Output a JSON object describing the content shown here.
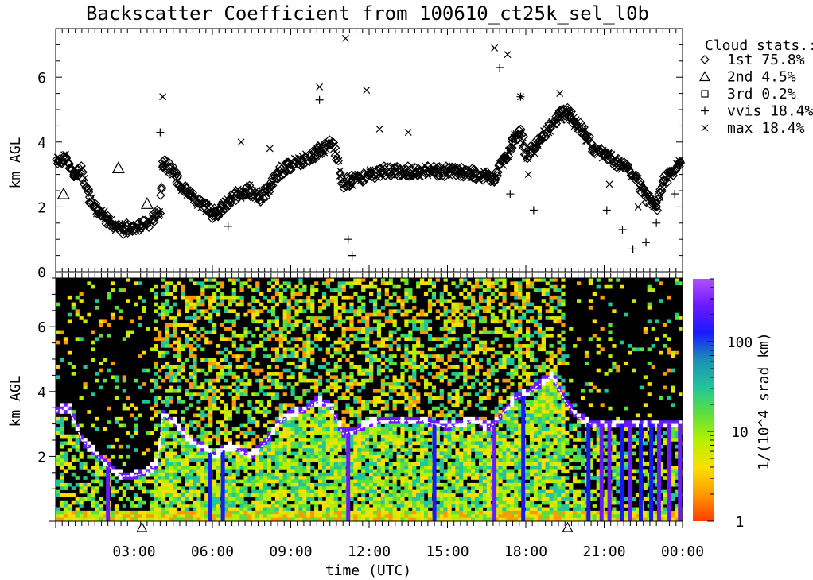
{
  "title": "Backscatter Coefficient from 100610_ct25k_sel_l0b",
  "chart_data": [
    {
      "type": "scatter",
      "panel": "cloud-base",
      "ylabel": "km AGL",
      "ylim": [
        0,
        7.5
      ],
      "y_ticks": [
        "0",
        "2",
        "4",
        "6"
      ],
      "xlim_hours": [
        0,
        24
      ],
      "legend_title": "Cloud stats.:",
      "legend_position": "top-right",
      "legend": [
        {
          "symbol": "diamond",
          "label": "1st",
          "value": "75.8%"
        },
        {
          "symbol": "triangle",
          "label": "2nd",
          "value": "4.5%"
        },
        {
          "symbol": "square",
          "label": "3rd",
          "value": "0.2%"
        },
        {
          "symbol": "plus",
          "label": "vvis",
          "value": "18.4%"
        },
        {
          "symbol": "cross",
          "label": "max",
          "value": "18.4%"
        }
      ],
      "series": [
        {
          "name": "1st",
          "x": [
            0.1,
            0.4,
            0.7,
            1.0,
            1.3,
            1.6,
            2.0,
            2.3,
            2.6,
            2.9,
            3.2,
            3.5,
            3.8,
            4.0,
            4.1,
            4.5,
            4.8,
            5.2,
            5.6,
            6.0,
            6.3,
            6.6,
            7.0,
            7.4,
            7.8,
            8.2,
            8.6,
            9.0,
            9.4,
            9.8,
            10.2,
            10.6,
            11.0,
            11.3,
            11.6,
            12.0,
            12.5,
            13.0,
            13.5,
            14.0,
            14.5,
            15.0,
            15.5,
            16.0,
            16.5,
            16.8,
            17.2,
            17.5,
            17.8,
            18.0,
            18.3,
            18.6,
            19.0,
            19.3,
            19.6,
            19.9,
            20.2,
            20.6,
            21.0,
            21.4,
            21.8,
            22.2,
            22.6,
            23.0,
            23.3,
            23.6,
            23.9
          ],
          "y": [
            3.4,
            3.5,
            3.0,
            3.1,
            2.3,
            1.9,
            1.6,
            1.4,
            1.3,
            1.4,
            1.4,
            1.5,
            1.7,
            1.8,
            3.4,
            3.1,
            2.6,
            2.3,
            2.1,
            1.8,
            1.9,
            2.2,
            2.4,
            2.5,
            2.3,
            2.6,
            3.1,
            3.3,
            3.4,
            3.6,
            3.8,
            4.0,
            2.7,
            2.8,
            2.9,
            3.0,
            3.1,
            3.1,
            3.1,
            3.1,
            3.1,
            3.1,
            3.1,
            3.0,
            3.0,
            2.9,
            3.5,
            4.0,
            4.4,
            3.6,
            3.8,
            4.2,
            4.5,
            4.8,
            4.9,
            4.6,
            4.3,
            3.8,
            3.6,
            3.4,
            3.2,
            2.9,
            2.3,
            2.0,
            2.8,
            3.1,
            3.4
          ],
          "symbol": "diamond"
        },
        {
          "name": "2nd",
          "x": [
            0.3,
            2.4,
            3.5
          ],
          "y": [
            2.4,
            3.2,
            2.1
          ],
          "symbol": "triangle"
        },
        {
          "name": "vvis",
          "x": [
            4.0,
            6.6,
            10.1,
            11.2,
            11.35,
            17.0,
            17.4,
            17.8,
            18.3,
            19.0,
            21.1,
            21.7,
            22.1,
            22.6,
            23.0,
            23.7
          ],
          "y": [
            4.3,
            1.4,
            5.3,
            1.0,
            0.5,
            6.3,
            2.4,
            5.4,
            1.9,
            4.6,
            1.9,
            1.3,
            0.7,
            0.9,
            1.5,
            2.4
          ],
          "symbol": "plus"
        },
        {
          "name": "max",
          "x": [
            4.1,
            7.1,
            8.2,
            10.1,
            11.1,
            11.9,
            12.4,
            13.5,
            16.8,
            17.3,
            17.8,
            18.1,
            19.3,
            21.2,
            22.3
          ],
          "y": [
            5.4,
            4.0,
            3.8,
            5.7,
            7.2,
            5.6,
            4.4,
            4.3,
            6.9,
            6.7,
            5.4,
            3.0,
            5.5,
            2.7,
            2.0
          ],
          "symbol": "cross"
        }
      ],
      "markers_at_hours": [
        3.3,
        19.6
      ]
    },
    {
      "type": "heatmap",
      "panel": "backscatter",
      "ylabel": "km AGL",
      "ylim": [
        0,
        7.5
      ],
      "y_ticks": [
        "2",
        "4",
        "6"
      ],
      "xlabel": "time (UTC)",
      "x_tick_labels": [
        "03:00",
        "06:00",
        "09:00",
        "12:00",
        "15:00",
        "18:00",
        "21:00",
        "00:00"
      ],
      "colorbar_label": "1/(10^4 srad km)",
      "colorbar_ticks": [
        "1",
        "10",
        "100"
      ],
      "colorbar_scale": "log",
      "colorbar_range": [
        1,
        500
      ],
      "colormap": [
        "#ff3c00",
        "#ff9a00",
        "#f8e000",
        "#b6f000",
        "#5ce040",
        "#22c49a",
        "#1a8fb8",
        "#1a1aff",
        "#6a1aff",
        "#b050ff"
      ],
      "cloud_layer": {
        "x": [
          0.0,
          0.5,
          1.0,
          1.5,
          2.0,
          2.5,
          3.0,
          3.5,
          3.9,
          4.1,
          4.6,
          5.1,
          5.6,
          6.1,
          6.6,
          7.0,
          7.5,
          8.0,
          8.5,
          9.0,
          9.5,
          10.0,
          10.5,
          11.0,
          11.5,
          12.0,
          12.5,
          13.0,
          13.5,
          14.0,
          14.5,
          15.0,
          15.5,
          16.0,
          16.5,
          16.8,
          17.2,
          17.6,
          18.0,
          18.5,
          19.0,
          19.5,
          20.0,
          20.5
        ],
        "y": [
          3.4,
          3.5,
          2.5,
          2.1,
          1.7,
          1.4,
          1.4,
          1.5,
          1.8,
          3.3,
          3.0,
          2.5,
          2.3,
          2.0,
          2.3,
          2.2,
          2.0,
          2.4,
          3.0,
          3.3,
          3.4,
          3.7,
          3.6,
          2.7,
          2.8,
          3.0,
          3.1,
          3.1,
          3.1,
          3.1,
          3.0,
          2.9,
          3.0,
          3.1,
          2.9,
          3.0,
          3.4,
          3.8,
          3.9,
          4.2,
          4.5,
          3.7,
          3.2,
          3.0
        ]
      },
      "precip_columns_hours": [
        2.0,
        5.9,
        6.4,
        11.2,
        14.5,
        16.8,
        17.9,
        20.4,
        20.9,
        21.2,
        21.7,
        22.0,
        22.4,
        22.8,
        23.1,
        23.5,
        23.9
      ]
    }
  ]
}
